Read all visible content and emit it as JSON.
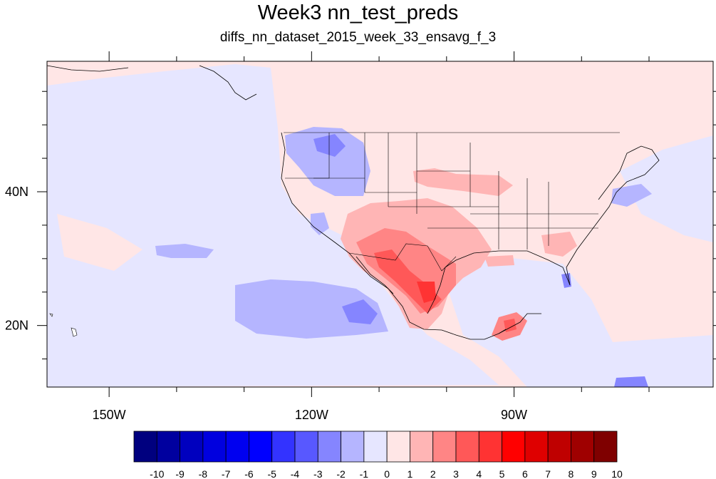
{
  "map": {
    "title": "Week3 nn_test_preds",
    "subtitle": "diffs_nn_dataset_2015_week_33_ensavg_f_3",
    "extent": {
      "lon_min": -159.2,
      "lon_max": -60.5,
      "lat_min": 10.8,
      "lat_max": 59.5
    },
    "x_ticks": [
      {
        "lon": -150,
        "label": "150W"
      },
      {
        "lon": -120,
        "label": "120W"
      },
      {
        "lon": -90,
        "label": "90W"
      }
    ],
    "y_ticks": [
      {
        "lat": 40,
        "label": "40N"
      },
      {
        "lat": 20,
        "label": "20N"
      }
    ],
    "colorbar": {
      "labels": [
        "-10",
        "-9",
        "-8",
        "-7",
        "-6",
        "-5",
        "-4",
        "-3",
        "-2",
        "-1",
        "0",
        "1",
        "2",
        "3",
        "4",
        "5",
        "6",
        "7",
        "8",
        "9",
        "10"
      ],
      "colors": [
        "#00007f",
        "#00009f",
        "#0000bf",
        "#0000df",
        "#0000f0",
        "#0000ff",
        "#3333ff",
        "#5858ff",
        "#8585ff",
        "#b5b5ff",
        "#e6e6ff",
        "#ffe6e6",
        "#ffb5b5",
        "#ff8585",
        "#ff5858",
        "#ff3333",
        "#ff0000",
        "#df0000",
        "#bf0000",
        "#9f0000",
        "#7f0000"
      ]
    }
  }
}
